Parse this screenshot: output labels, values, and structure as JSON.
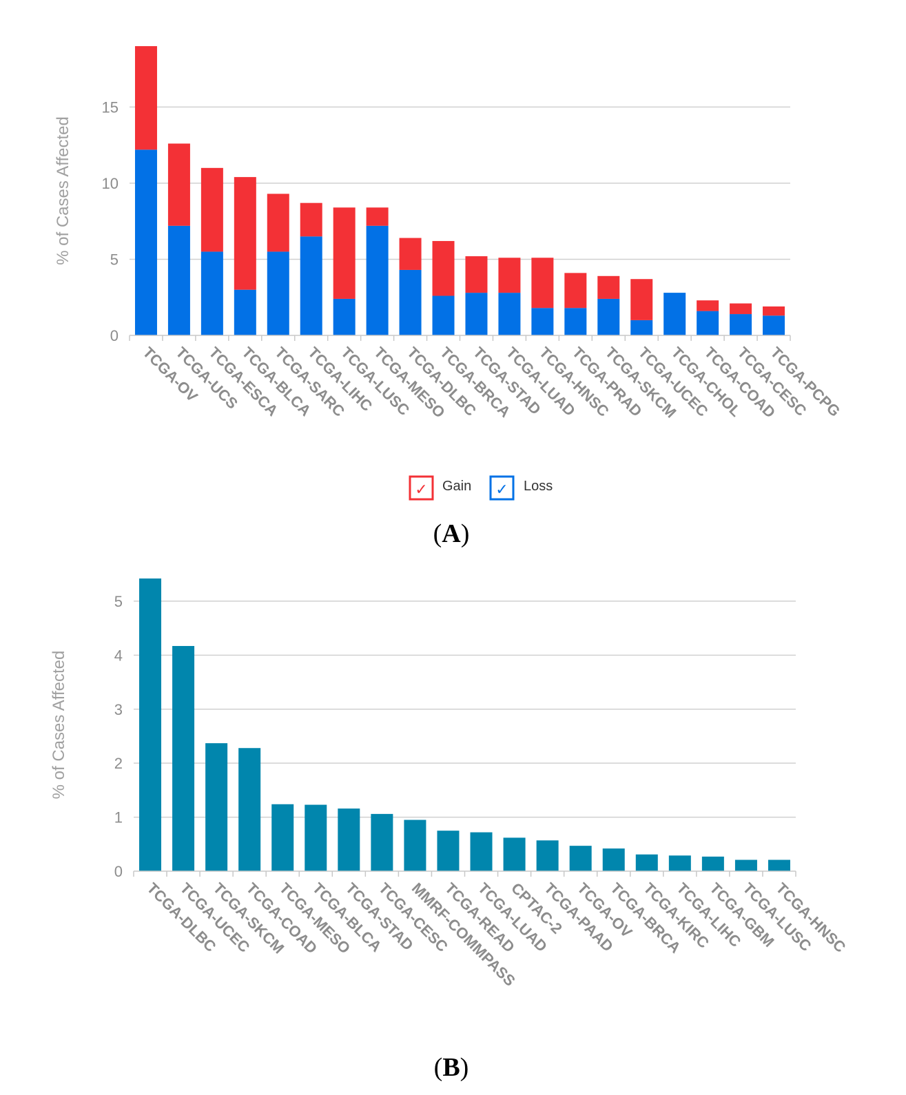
{
  "colors": {
    "gain": "#f33136",
    "loss": "#0271e6",
    "single": "#0186ad",
    "grid": "#d0d0d0",
    "axis": "#c8c8c8",
    "tick_text": "#8c8c8c",
    "ylabel_text": "#a0a0a0"
  },
  "panels": {
    "a": {
      "open": "(",
      "letter": "A",
      "close": ")"
    },
    "b": {
      "open": "(",
      "letter": "B",
      "close": ")"
    }
  },
  "chart_data": [
    {
      "type": "bar",
      "stacked": true,
      "categories": [
        "TCGA-OV",
        "TCGA-UCS",
        "TCGA-ESCA",
        "TCGA-BLCA",
        "TCGA-SARC",
        "TCGA-LIHC",
        "TCGA-LUSC",
        "TCGA-MESO",
        "TCGA-DLBC",
        "TCGA-BRCA",
        "TCGA-STAD",
        "TCGA-LUAD",
        "TCGA-HNSC",
        "TCGA-PRAD",
        "TCGA-SKCM",
        "TCGA-UCEC",
        "TCGA-CHOL",
        "TCGA-COAD",
        "TCGA-CESC",
        "TCGA-PCPG"
      ],
      "series": [
        {
          "name": "Loss",
          "color": "#0271e6",
          "values": [
            12.2,
            7.2,
            5.5,
            3.0,
            5.5,
            6.5,
            2.4,
            7.2,
            4.3,
            2.6,
            2.8,
            2.8,
            1.8,
            1.8,
            2.4,
            1.0,
            2.8,
            1.6,
            1.4,
            1.3
          ]
        },
        {
          "name": "Gain",
          "color": "#f33136",
          "values": [
            6.8,
            5.4,
            5.5,
            7.4,
            3.8,
            2.2,
            6.0,
            1.2,
            2.1,
            3.6,
            2.4,
            2.3,
            3.3,
            2.3,
            1.5,
            2.7,
            0.0,
            0.7,
            0.7,
            0.6
          ]
        }
      ],
      "ylabel": "% of Cases Affected",
      "ylim": [
        0,
        19
      ],
      "yticks": [
        0,
        5,
        10,
        15
      ],
      "grid": true,
      "legend": {
        "placement": "bottom-center",
        "items": [
          {
            "label": "Gain",
            "color": "#f33136",
            "symbol": "✓"
          },
          {
            "label": "Loss",
            "color": "#0271e6",
            "symbol": "✓"
          }
        ]
      }
    },
    {
      "type": "bar",
      "categories": [
        "TCGA-DLBC",
        "TCGA-UCEC",
        "TCGA-SKCM",
        "TCGA-COAD",
        "TCGA-MESO",
        "TCGA-BLCA",
        "TCGA-STAD",
        "TCGA-CESC",
        "MMRF-COMMPASS",
        "TCGA-READ",
        "TCGA-LUAD",
        "CPTAC-2",
        "TCGA-PAAD",
        "TCGA-OV",
        "TCGA-BRCA",
        "TCGA-KIRC",
        "TCGA-LIHC",
        "TCGA-GBM",
        "TCGA-LUSC",
        "TCGA-HNSC"
      ],
      "values": [
        5.42,
        4.17,
        2.37,
        2.28,
        1.24,
        1.23,
        1.16,
        1.06,
        0.95,
        0.75,
        0.72,
        0.62,
        0.57,
        0.47,
        0.42,
        0.31,
        0.29,
        0.27,
        0.21,
        0.21
      ],
      "color": "#0186ad",
      "ylabel": "% of Cases Affected",
      "ylim": [
        0,
        5.42
      ],
      "yticks": [
        0,
        1,
        2,
        3,
        4,
        5
      ],
      "grid": true
    }
  ]
}
